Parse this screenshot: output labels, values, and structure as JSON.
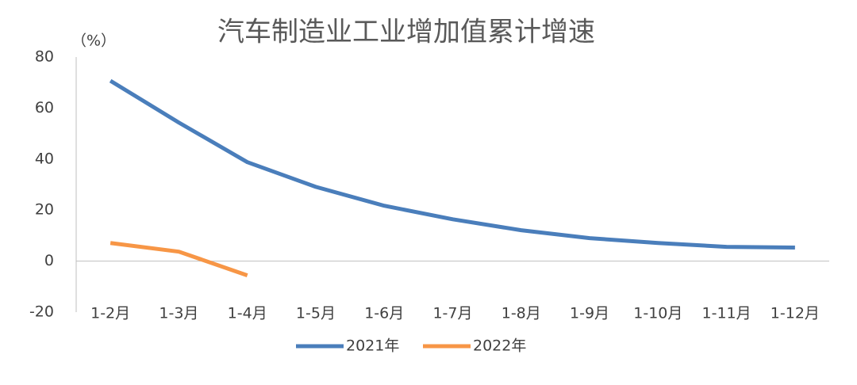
{
  "chart_data": {
    "type": "line",
    "title": "汽车制造业工业增加值累计增速",
    "y_label": "（%）",
    "categories": [
      "1-2月",
      "1-3月",
      "1-4月",
      "1-5月",
      "1-6月",
      "1-7月",
      "1-8月",
      "1-9月",
      "1-10月",
      "1-11月",
      "1-12月"
    ],
    "series": [
      {
        "name": "2021年",
        "color": "#4a7ebb",
        "values": [
          70.7,
          54.3,
          38.8,
          29.1,
          21.7,
          16.4,
          12.1,
          9.0,
          7.1,
          5.6,
          5.3
        ]
      },
      {
        "name": "2022年",
        "color": "#f79646",
        "values": [
          7.1,
          3.7,
          -5.6,
          null,
          null,
          null,
          null,
          null,
          null,
          null,
          null
        ]
      }
    ],
    "ylim": [
      -20,
      80
    ],
    "yticks": [
      -20,
      0,
      20,
      40,
      60,
      80
    ],
    "grid": false,
    "legend": "bottom"
  }
}
